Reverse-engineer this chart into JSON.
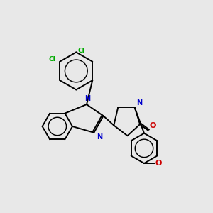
{
  "bg_color": "#e8e8e8",
  "bond_color": "#000000",
  "n_color": "#0000cc",
  "o_color": "#cc0000",
  "cl_color": "#00aa00",
  "line_width": 1.4,
  "figsize": [
    3.0,
    3.0
  ],
  "dpi": 100,
  "xlim": [
    0.0,
    10.0
  ],
  "ylim": [
    0.0,
    10.0
  ]
}
